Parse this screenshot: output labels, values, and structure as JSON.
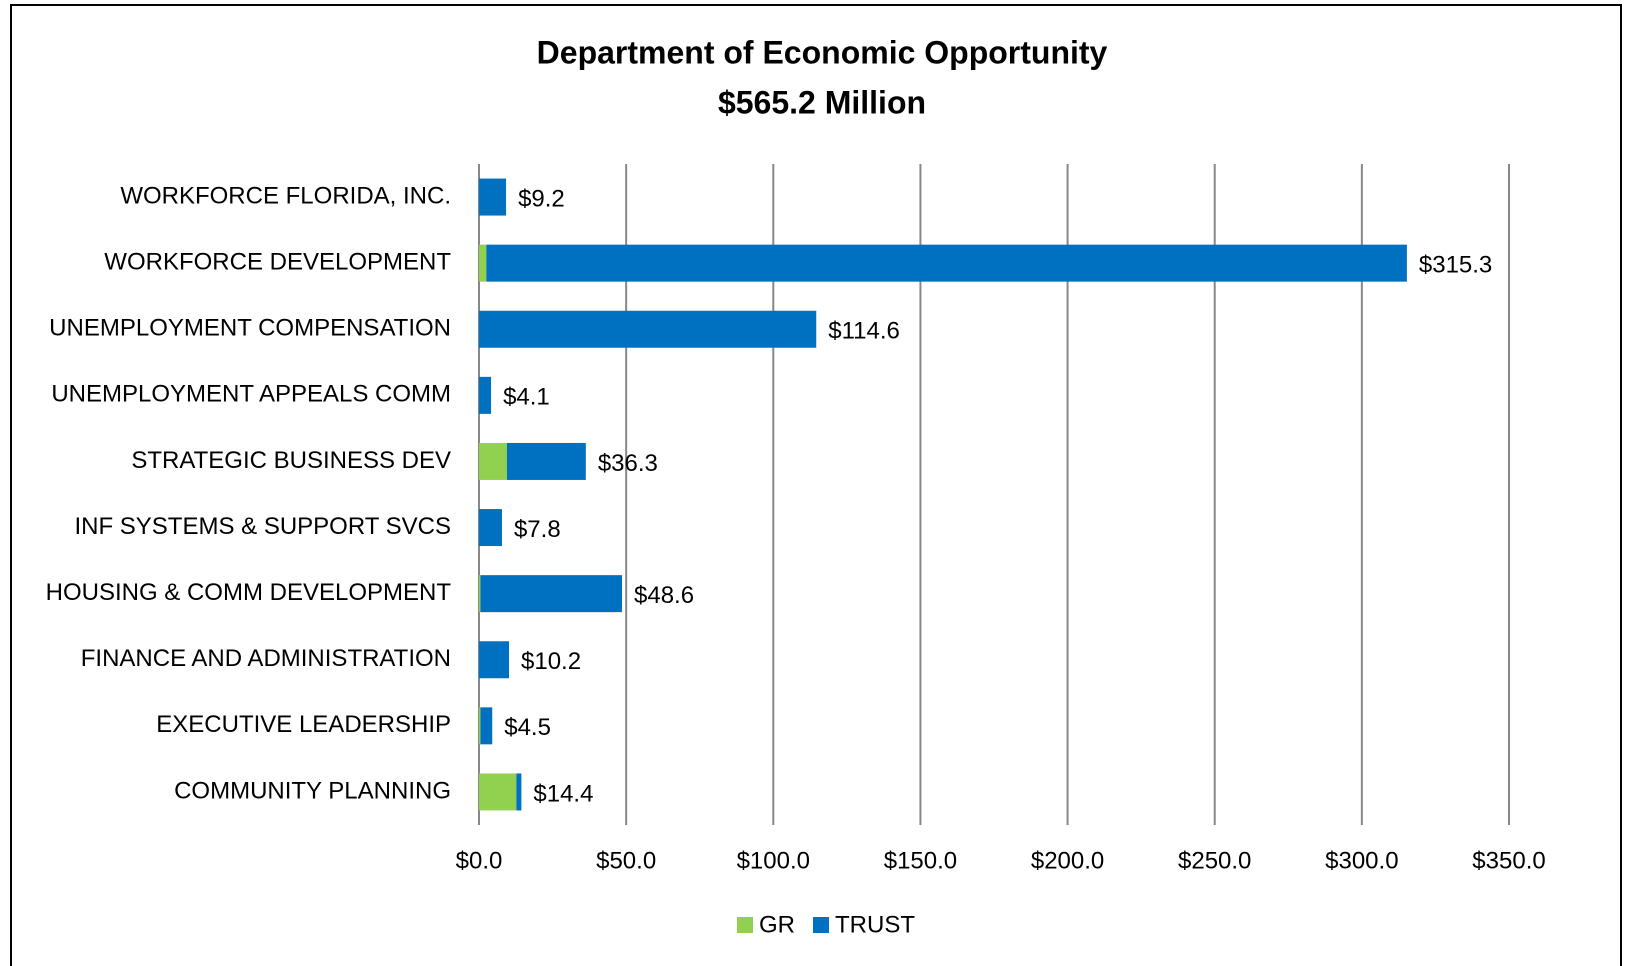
{
  "chart_data": {
    "type": "stacked_barh",
    "title": "Department of Economic Opportunity",
    "subtitle": "$565.2 Million",
    "categories": [
      "WORKFORCE FLORIDA, INC.",
      "WORKFORCE DEVELOPMENT",
      "UNEMPLOYMENT COMPENSATION",
      "UNEMPLOYMENT APPEALS COMM",
      "STRATEGIC BUSINESS DEV",
      "INF SYSTEMS & SUPPORT SVCS",
      "HOUSING & COMM DEVELOPMENT",
      "FINANCE AND ADMINISTRATION",
      "EXECUTIVE LEADERSHIP",
      "COMMUNITY PLANNING"
    ],
    "series": [
      {
        "name": "GR",
        "color": "#92d050",
        "values": [
          0,
          2.5,
          0,
          0,
          9.5,
          0,
          0.5,
          0,
          0.5,
          12.7
        ]
      },
      {
        "name": "TRUST",
        "color": "#0070c0",
        "values": [
          9.2,
          312.8,
          114.6,
          4.1,
          26.8,
          7.8,
          48.1,
          10.2,
          4.0,
          1.7
        ]
      }
    ],
    "totals": [
      9.2,
      315.3,
      114.6,
      4.1,
      36.3,
      7.8,
      48.6,
      10.2,
      4.5,
      14.4
    ],
    "total_labels": [
      "$9.2",
      "$315.3",
      "$114.6",
      "$4.1",
      "$36.3",
      "$7.8",
      "$48.6",
      "$10.2",
      "$4.5",
      "$14.4"
    ],
    "xlim": [
      0,
      350
    ],
    "xticks": [
      {
        "value": 0,
        "label": "$0.0"
      },
      {
        "value": 50,
        "label": "$50.0"
      },
      {
        "value": 100,
        "label": "$100.0"
      },
      {
        "value": 150,
        "label": "$150.0"
      },
      {
        "value": 200,
        "label": "$200.0"
      },
      {
        "value": 250,
        "label": "$250.0"
      },
      {
        "value": 300,
        "label": "$300.0"
      },
      {
        "value": 350,
        "label": "$350.0"
      }
    ],
    "grid": true,
    "legend": "bottom"
  }
}
